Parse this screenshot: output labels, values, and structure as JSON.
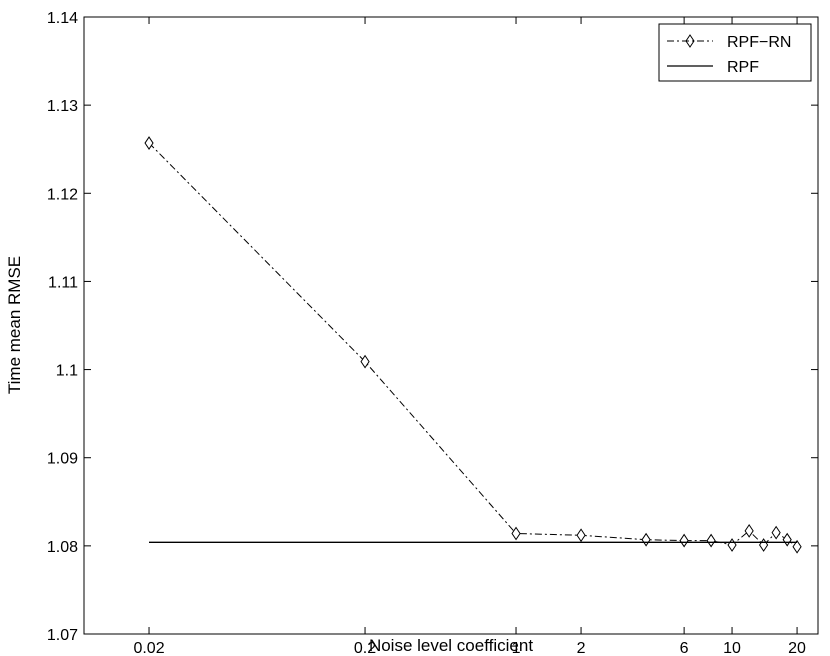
{
  "chart_data": {
    "type": "line",
    "title": "",
    "xlabel": "Noise level coefficient",
    "ylabel": "Time mean RMSE",
    "xscale": "log",
    "xlim": [
      0.01,
      25
    ],
    "ylim": [
      1.07,
      1.14
    ],
    "grid": false,
    "legend_position": "top-right",
    "x_ticks": [
      {
        "value": 0.02,
        "label": "0.02"
      },
      {
        "value": 0.2,
        "label": "0.2"
      },
      {
        "value": 1,
        "label": "1"
      },
      {
        "value": 2,
        "label": "2"
      },
      {
        "value": 6,
        "label": "6"
      },
      {
        "value": 10,
        "label": "10"
      },
      {
        "value": 20,
        "label": "20"
      }
    ],
    "y_ticks": [
      {
        "value": 1.07,
        "label": "1.07"
      },
      {
        "value": 1.08,
        "label": "1.08"
      },
      {
        "value": 1.09,
        "label": "1.09"
      },
      {
        "value": 1.1,
        "label": "1.1"
      },
      {
        "value": 1.11,
        "label": "1.11"
      },
      {
        "value": 1.12,
        "label": "1.12"
      },
      {
        "value": 1.13,
        "label": "1.13"
      },
      {
        "value": 1.14,
        "label": "1.14"
      }
    ],
    "series": [
      {
        "name": "RPF−RN",
        "style": "dash-dot",
        "marker": "diamond",
        "color": "#000000",
        "x": [
          0.02,
          0.2,
          1,
          2,
          4,
          6,
          8,
          10,
          12,
          14,
          16,
          18,
          20
        ],
        "y": [
          1.1257,
          1.1009,
          1.0814,
          1.0812,
          1.0807,
          1.0806,
          1.0806,
          1.0801,
          1.0817,
          1.0801,
          1.0815,
          1.0807,
          1.0799
        ]
      },
      {
        "name": "RPF",
        "style": "solid",
        "marker": "none",
        "color": "#000000",
        "x": [
          0.02,
          20
        ],
        "y": [
          1.0804,
          1.0804
        ]
      }
    ]
  }
}
